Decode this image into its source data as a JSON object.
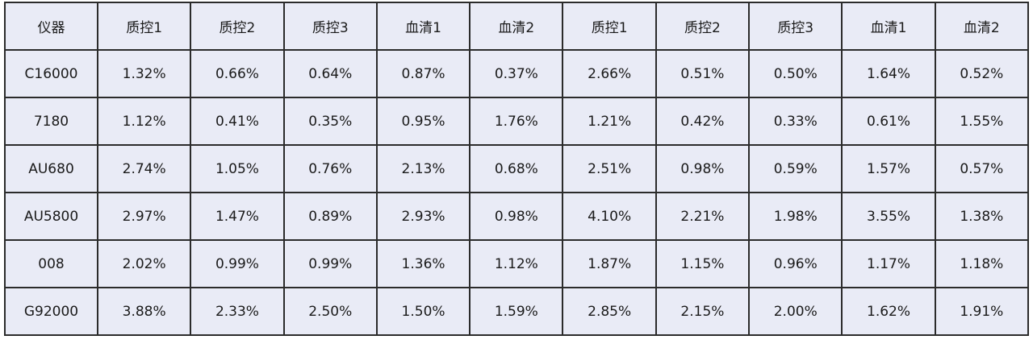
{
  "table": {
    "header": [
      "仪器",
      "质控1",
      "质控2",
      "质控3",
      "血清1",
      "血清2",
      "质控1",
      "质控2",
      "质控3",
      "血清1",
      "血清2"
    ],
    "rows": [
      [
        "C16000",
        "1.32%",
        "0.66%",
        "0.64%",
        "0.87%",
        "0.37%",
        "2.66%",
        "0.51%",
        "0.50%",
        "1.64%",
        "0.52%"
      ],
      [
        "7180",
        "1.12%",
        "0.41%",
        "0.35%",
        "0.95%",
        "1.76%",
        "1.21%",
        "0.42%",
        "0.33%",
        "0.61%",
        "1.55%"
      ],
      [
        "AU680",
        "2.74%",
        "1.05%",
        "0.76%",
        "2.13%",
        "0.68%",
        "2.51%",
        "0.98%",
        "0.59%",
        "1.57%",
        "0.57%"
      ],
      [
        "AU5800",
        "2.97%",
        "1.47%",
        "0.89%",
        "2.93%",
        "0.98%",
        "4.10%",
        "2.21%",
        "1.98%",
        "3.55%",
        "1.38%"
      ],
      [
        "008",
        "2.02%",
        "0.99%",
        "0.99%",
        "1.36%",
        "1.12%",
        "1.87%",
        "1.15%",
        "0.96%",
        "1.17%",
        "1.18%"
      ],
      [
        "G92000",
        "3.88%",
        "2.33%",
        "2.50%",
        "1.50%",
        "1.59%",
        "2.85%",
        "2.15%",
        "2.00%",
        "1.62%",
        "1.91%"
      ]
    ]
  }
}
